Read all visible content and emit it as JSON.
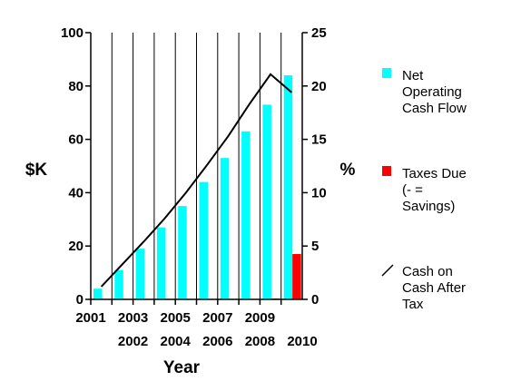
{
  "chart_data": {
    "type": "bar",
    "xlabel": "Year",
    "ylabel": "$K",
    "y2label": "%",
    "categories": [
      "2001",
      "2002",
      "2003",
      "2004",
      "2005",
      "2006",
      "2007",
      "2008",
      "2009",
      "2010"
    ],
    "ylim": [
      0,
      100
    ],
    "y2lim": [
      0,
      25
    ],
    "yticks": [
      "0",
      "20",
      "40",
      "60",
      "80",
      "100"
    ],
    "y2ticks": [
      "0",
      "5",
      "10",
      "15",
      "20",
      "25"
    ],
    "grid": "vertical",
    "legend_position": "right",
    "series": [
      {
        "name": "Net Operating Cash Flow",
        "kind": "bar",
        "axis": "left",
        "color": "#00FFFF",
        "values": [
          4,
          11,
          19,
          27,
          35,
          44,
          53,
          63,
          73,
          84
        ]
      },
      {
        "name": "Taxes Due (- = Savings)",
        "kind": "bar",
        "axis": "left",
        "color": "#FF0000",
        "values": [
          0,
          0,
          0,
          0,
          0,
          0,
          0,
          0,
          0.3,
          17
        ]
      },
      {
        "name": "Cash on Cash After Tax",
        "kind": "line",
        "axis": "right",
        "color": "#000000",
        "values": [
          1.2,
          3.3,
          5.4,
          7.6,
          10.0,
          12.6,
          15.3,
          18.3,
          21.1,
          19.4
        ]
      }
    ],
    "legend": [
      {
        "lines": [
          "Net",
          "Operating",
          "Cash Flow"
        ],
        "color": "#00FFFF",
        "marker": "box"
      },
      {
        "lines": [
          "Taxes Due",
          "(- =",
          "Savings)"
        ],
        "color": "#FF0000",
        "marker": "box"
      },
      {
        "lines": [
          "Cash on",
          "Cash After",
          "Tax"
        ],
        "color": "#000000",
        "marker": "line"
      }
    ]
  }
}
